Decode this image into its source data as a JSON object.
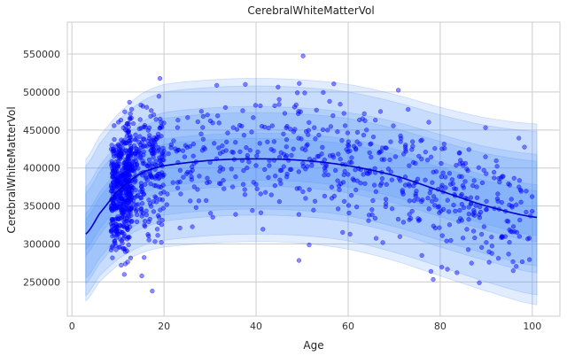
{
  "chart_data": {
    "type": "scatter",
    "title": "CerebralWhiteMatterVol",
    "xlabel": "Age",
    "ylabel": "CerebralWhiteMatterVol",
    "xlim": [
      -1,
      106
    ],
    "ylim": [
      205000,
      592000
    ],
    "x_ticks": [
      0,
      20,
      40,
      60,
      80,
      100
    ],
    "y_ticks": [
      250000,
      300000,
      350000,
      400000,
      450000,
      500000,
      550000
    ],
    "x_tick_labels": [
      "0",
      "20",
      "40",
      "60",
      "80",
      "100"
    ],
    "y_tick_labels": [
      "250000",
      "300000",
      "350000",
      "400000",
      "450000",
      "500000",
      "550000"
    ],
    "grid": true,
    "colors": {
      "points": "#0000ff",
      "median_line": "#0000cc",
      "band": "#4d8ff7",
      "grid": "#cccccc",
      "frame": "#cccccc"
    },
    "median_curve": {
      "x": [
        3,
        6,
        10,
        15,
        20,
        30,
        40,
        50,
        60,
        70,
        80,
        90,
        101
      ],
      "y": [
        313000,
        340000,
        370000,
        393000,
        403000,
        410000,
        412000,
        410000,
        403000,
        390000,
        370000,
        350000,
        335000
      ]
    },
    "centile_bands": [
      {
        "lower": [
          225000,
          250000,
          272000,
          288000,
          296000,
          301000,
          303000,
          301000,
          293000,
          278000,
          258000,
          238000,
          220000
        ],
        "upper": [
          403000,
          432000,
          462000,
          487000,
          500000,
          506000,
          508000,
          506000,
          500000,
          487000,
          470000,
          456000,
          448000
        ]
      },
      {
        "lower": [
          232000,
          258000,
          280000,
          297000,
          305000,
          311000,
          313000,
          311000,
          304000,
          289000,
          270000,
          250000,
          233000
        ],
        "upper": [
          412000,
          442000,
          471000,
          497000,
          510000,
          516000,
          518000,
          516000,
          510000,
          497000,
          480000,
          466000,
          458000
        ]
      },
      {
        "lower": [
          248000,
          274000,
          302000,
          320000,
          330000,
          336000,
          338000,
          336000,
          329000,
          315000,
          296000,
          278000,
          262000
        ],
        "upper": [
          375000,
          403000,
          433000,
          460000,
          473000,
          479000,
          481000,
          479000,
          473000,
          461000,
          444000,
          428000,
          418000
        ]
      },
      {
        "lower": [
          255000,
          281000,
          310000,
          328000,
          338000,
          344000,
          346000,
          344000,
          337000,
          323000,
          305000,
          287000,
          271000
        ],
        "upper": [
          367000,
          395000,
          425000,
          452000,
          465000,
          471000,
          473000,
          471000,
          465000,
          452000,
          435000,
          419000,
          409000
        ]
      },
      {
        "lower": [
          285000,
          312000,
          340000,
          358000,
          368000,
          374000,
          376000,
          374000,
          367000,
          354000,
          336000,
          318000,
          303000
        ],
        "upper": [
          340000,
          368000,
          398000,
          425000,
          438000,
          444000,
          446000,
          444000,
          438000,
          425000,
          408000,
          390000,
          378000
        ]
      },
      {
        "lower": [
          293000,
          320000,
          348000,
          366000,
          376000,
          382000,
          384000,
          382000,
          375000,
          362000,
          344000,
          326000,
          311000
        ],
        "upper": [
          333000,
          361000,
          391000,
          418000,
          431000,
          437000,
          439000,
          437000,
          431000,
          418000,
          401000,
          383000,
          370000
        ]
      }
    ],
    "point_count": 1300,
    "note": ""
  }
}
